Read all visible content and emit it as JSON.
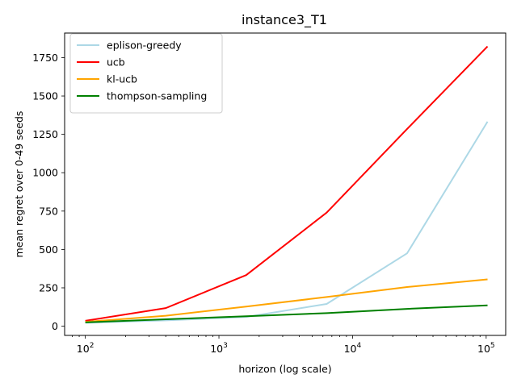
{
  "chart_data": {
    "type": "line",
    "title": "instance3_T1",
    "xlabel": "horizon (log scale)",
    "ylabel": "mean regret over 0-49 seeds",
    "xscale": "log",
    "xlim": [
      70,
      140000
    ],
    "ylim": [
      -60,
      1910
    ],
    "x_tick_values": [
      100,
      1000,
      10000,
      100000
    ],
    "x_tick_labels": [
      {
        "base": "10",
        "exp": "2"
      },
      {
        "base": "10",
        "exp": "3"
      },
      {
        "base": "10",
        "exp": "4"
      },
      {
        "base": "10",
        "exp": "5"
      }
    ],
    "y_tick_values": [
      0,
      250,
      500,
      750,
      1000,
      1250,
      1500,
      1750
    ],
    "y_tick_labels": [
      "0",
      "250",
      "500",
      "750",
      "1000",
      "1250",
      "1500",
      "1750"
    ],
    "grid": false,
    "legend_position": "upper-left",
    "x": [
      100,
      400,
      1600,
      6400,
      25600,
      102400
    ],
    "series": [
      {
        "name": "eplison-greedy",
        "color": "#add8e6",
        "values": [
          22,
          38,
          60,
          145,
          475,
          1333
        ]
      },
      {
        "name": "ucb",
        "color": "#ff0000",
        "values": [
          35,
          118,
          333,
          740,
          1285,
          1823
        ]
      },
      {
        "name": "kl-ucb",
        "color": "#ffa500",
        "values": [
          28,
          68,
          128,
          190,
          255,
          305
        ]
      },
      {
        "name": "thompson-sampling",
        "color": "#008000",
        "values": [
          25,
          45,
          65,
          85,
          113,
          136
        ]
      }
    ]
  }
}
